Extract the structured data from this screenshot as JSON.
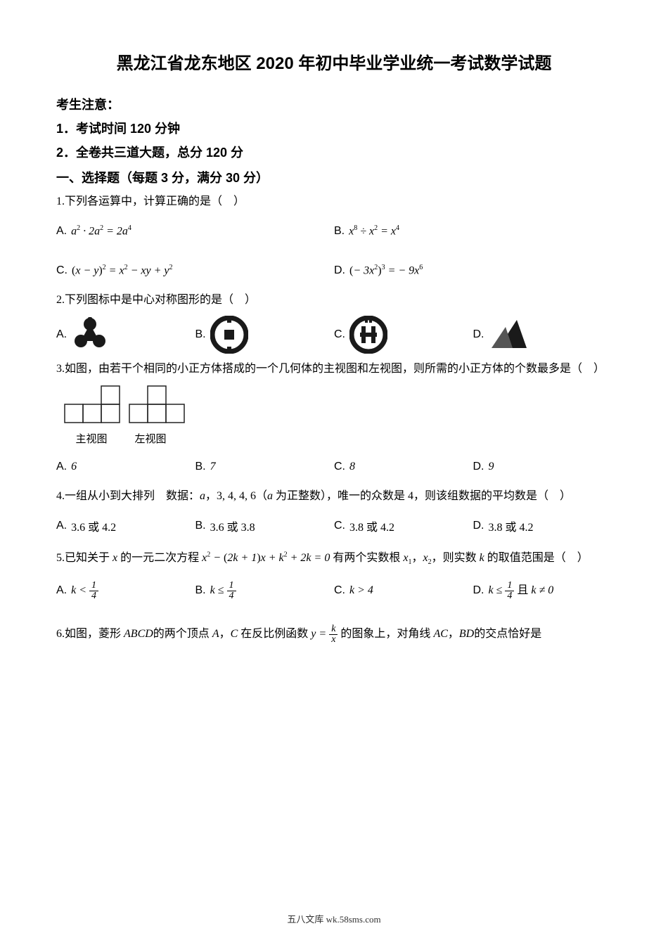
{
  "title": "黑龙江省龙东地区 2020 年初中毕业学业统一考试数学试题",
  "notice_head": "考生注意：",
  "notice1": "1．考试时间 120 分钟",
  "notice2": "2．全卷共三道大题，总分 120 分",
  "section1": "一、选择题（每题 3 分，满分 30 分）",
  "q1": {
    "stem": "1.下列各运算中，计算正确的是（　）",
    "A": "a² · 2a² = 2a⁴",
    "B": "x⁸ ÷ x² = x⁴",
    "C": "(x − y)² = x² − xy + y²",
    "D": "(− 3x²)³ = − 9x⁶"
  },
  "q2": {
    "stem": "2.下列图标中是中心对称图形的是（　）",
    "labels": {
      "A": "A.",
      "B": "B.",
      "C": "C.",
      "D": "D."
    },
    "icon_color": "#1a1a1a"
  },
  "q3": {
    "stem": "3.如图，由若干个相同的小正方体搭成的一个几何体的主视图和左视图，则所需的小正方体的个数最多是（　）",
    "main_view_label": "主视图",
    "left_view_label": "左视图",
    "grid": {
      "cell": 26,
      "stroke": "#222",
      "main_view_cells": [
        [
          0,
          2
        ],
        [
          1,
          0
        ],
        [
          1,
          1
        ],
        [
          1,
          2
        ]
      ],
      "left_view_cells": [
        [
          0,
          1
        ],
        [
          1,
          0
        ],
        [
          1,
          1
        ],
        [
          1,
          2
        ]
      ]
    },
    "A": "6",
    "B": "7",
    "C": "8",
    "D": "9"
  },
  "q4": {
    "stem_pre": "4.一组从小到大排列　数据：",
    "stem_mid": "，3, 4, 4, 6（",
    "stem_post": " 为正整数），唯一的众数是 4，则该组数据的平均数是（　）",
    "var": "a",
    "A": "3.6 或 4.2",
    "B": "3.6 或 3.8",
    "C": "3.8 或 4.2",
    "D": "3.8 或 4.2"
  },
  "q5": {
    "stem_pre": "5.已知关于 ",
    "var_x": "x",
    "stem_mid1": " 的一元二次方程 ",
    "eq": "x² − (2k + 1)x + k² + 2k = 0",
    "stem_mid2": " 有两个实数根 ",
    "x1": "x₁",
    "comma": "，",
    "x2": "x₂",
    "stem_post": "，则实数 ",
    "var_k": "k",
    "stem_end": " 的取值范围是（　）",
    "A_pre": "k < ",
    "A_num": "1",
    "A_den": "4",
    "B_pre": "k ≤ ",
    "B_num": "1",
    "B_den": "4",
    "C": "k > 4",
    "D_pre": "k ≤ ",
    "D_num": "1",
    "D_den": "4",
    "D_post": " 且 k ≠ 0"
  },
  "q6": {
    "stem_pre": "6.如图，菱形 ",
    "ABCD": "ABCD",
    "mid1": "的两个顶点 ",
    "A": "A",
    "mid2": "，",
    "C": "C",
    "mid3": " 在反比例函数 ",
    "y": "y = ",
    "k": "k",
    "x": "x",
    "mid4": " 的图象上，对角线 ",
    "AC": "AC",
    "mid5": "，",
    "BD": "BD",
    "mid6": "的交点恰好是"
  },
  "footer": "五八文库 wk.58sms.com"
}
